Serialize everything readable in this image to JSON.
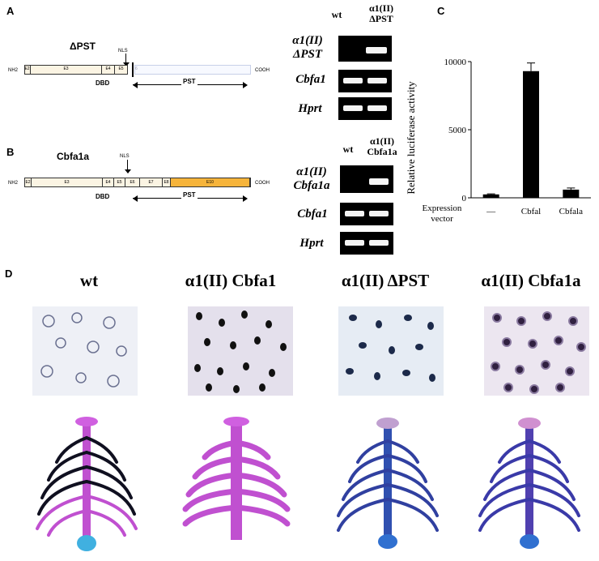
{
  "panels": {
    "a": {
      "letter": "A",
      "title": "ΔPST",
      "nh2": "NH2",
      "cooh": "COOH",
      "nls": "NLS",
      "dbd": "DBD",
      "pst": "PST",
      "exons": [
        "E2",
        "E3",
        "E4",
        "E5",
        "6"
      ]
    },
    "b": {
      "letter": "B",
      "title": "Cbfa1a",
      "nh2": "NH2",
      "cooh": "COOH",
      "nls": "NLS",
      "dbd": "DBD",
      "pst": "PST",
      "exons": [
        "E2",
        "E3",
        "E4",
        "E5",
        "E6",
        "E7",
        "E8",
        "E10"
      ]
    },
    "gel_a": {
      "col1": "wt",
      "col2_line1": "α1(II)",
      "col2_line2": "ΔPST",
      "rows": [
        "α1(II) ΔPST",
        "Cbfa1",
        "Hprt"
      ]
    },
    "gel_b": {
      "col1": "wt",
      "col2_line1": "α1(II)",
      "col2_line2": "Cbfa1a",
      "rows": [
        "α1(II) Cbfa1a",
        "Cbfa1",
        "Hprt"
      ]
    },
    "c": {
      "letter": "C",
      "ylabel": "Relative luciferase activity",
      "xlabel_line1": "Expression",
      "xlabel_line2": "vector"
    },
    "d": {
      "letter": "D",
      "columns": [
        "wt",
        "α1(II) Cbfa1",
        "α1(II) ΔPST",
        "α1(II) Cbfa1a"
      ]
    }
  },
  "chart_data": {
    "type": "bar",
    "categories": [
      "—",
      "Cbfal",
      "Cbfala"
    ],
    "values": [
      250,
      9300,
      600
    ],
    "errors": [
      40,
      600,
      120
    ],
    "ylabel": "Relative luciferase activity",
    "xlabel": "Expression vector",
    "ylim": [
      0,
      10000
    ],
    "yticks": [
      0,
      5000,
      10000
    ]
  }
}
